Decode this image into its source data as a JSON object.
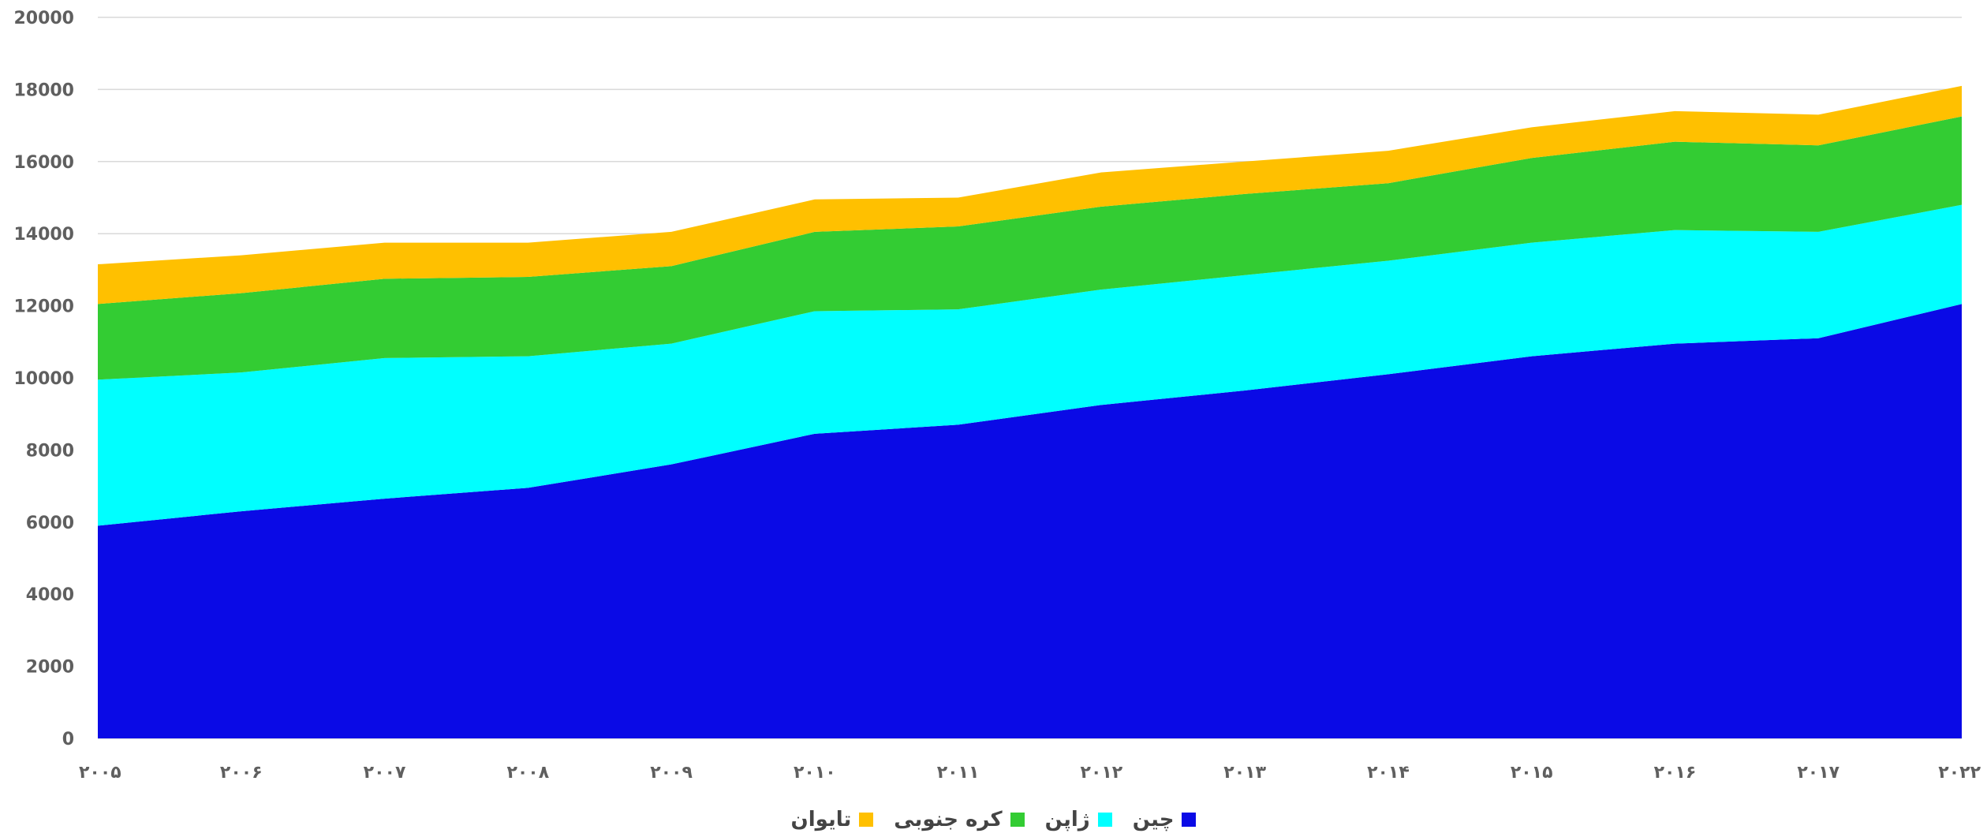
{
  "chart_data": {
    "type": "area",
    "stacked": true,
    "title": "",
    "xlabel": "",
    "ylabel": "",
    "ylim": [
      0,
      20000
    ],
    "yticks": [
      "0",
      "2000",
      "4000",
      "6000",
      "8000",
      "10000",
      "12000",
      "14000",
      "16000",
      "18000",
      "20000"
    ],
    "categories": [
      "۲۰۰۵",
      "۲۰۰۶",
      "۲۰۰۷",
      "۲۰۰۸",
      "۲۰۰۹",
      "۲۰۱۰",
      "۲۰۱۱",
      "۲۰۱۲",
      "۲۰۱۳",
      "۲۰۱۴",
      "۲۰۱۵",
      "۲۰۱۶",
      "۲۰۱۷",
      "۲۰۲۲"
    ],
    "grid": true,
    "legend_position": "bottom",
    "series": [
      {
        "name": "چین",
        "color": "#0a0ae6",
        "values": [
          5900,
          6300,
          6650,
          6950,
          7600,
          8450,
          8700,
          9250,
          9650,
          10100,
          10600,
          10950,
          11100,
          12050
        ]
      },
      {
        "name": "ژاپن",
        "color": "#00ffff",
        "values": [
          4050,
          3850,
          3900,
          3650,
          3350,
          3400,
          3200,
          3200,
          3200,
          3150,
          3150,
          3150,
          2950,
          2750
        ]
      },
      {
        "name": "کره جنوبی",
        "color": "#33cc33",
        "values": [
          2100,
          2200,
          2200,
          2200,
          2150,
          2200,
          2300,
          2300,
          2250,
          2150,
          2350,
          2450,
          2400,
          2450
        ]
      },
      {
        "name": "تایوان",
        "color": "#ffc000",
        "values": [
          1100,
          1050,
          1000,
          950,
          950,
          900,
          800,
          950,
          900,
          900,
          850,
          850,
          850,
          850
        ]
      }
    ]
  }
}
